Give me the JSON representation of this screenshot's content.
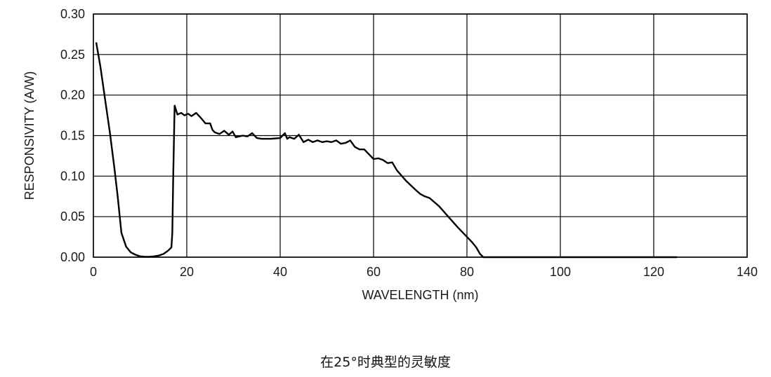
{
  "caption": "在25°时典型的灵敏度",
  "chart_data": {
    "type": "line",
    "title": "",
    "xlabel": "WAVELENGTH (nm)",
    "ylabel": "RESPONSIVITY (A/W)",
    "xlim": [
      0,
      140
    ],
    "ylim": [
      0,
      0.3
    ],
    "x_ticks": [
      0,
      20,
      40,
      60,
      80,
      100,
      120,
      140
    ],
    "x_tick_labels": [
      "0",
      "20",
      "40",
      "60",
      "80",
      "100",
      "120",
      "140"
    ],
    "y_ticks": [
      0,
      0.05,
      0.1,
      0.15,
      0.2,
      0.25,
      0.3
    ],
    "y_tick_labels": [
      "0.00",
      "0.05",
      "0.10",
      "0.15",
      "0.20",
      "0.25",
      "0.30"
    ],
    "grid": true,
    "legend": "none",
    "line_color": "#000000",
    "series": [
      {
        "x": [
          0.6,
          1.5,
          2.5,
          3.5,
          4.5,
          5.2,
          6,
          7,
          8,
          9,
          10,
          11,
          12,
          13,
          14,
          15,
          16,
          16.7,
          16.9,
          17.1,
          17.4,
          18,
          18.8,
          19.5,
          20.3,
          21,
          22,
          23,
          24,
          25,
          25.5,
          26,
          27,
          28,
          29,
          29.8,
          30.5,
          32,
          33,
          34,
          35,
          36,
          38,
          40,
          41,
          41.5,
          42,
          43,
          44,
          45,
          46,
          47,
          48,
          49,
          50,
          51,
          52,
          53,
          54,
          55,
          56,
          57,
          58,
          59,
          60,
          61,
          62,
          63,
          64,
          65,
          67,
          69,
          70,
          71,
          72,
          74,
          76,
          78,
          80,
          81,
          82,
          82.8,
          83.5,
          84,
          90,
          100,
          110,
          120,
          125
        ],
        "y": [
          0.265,
          0.235,
          0.195,
          0.155,
          0.11,
          0.075,
          0.03,
          0.013,
          0.006,
          0.003,
          0.001,
          0.0005,
          0.0005,
          0.001,
          0.002,
          0.004,
          0.008,
          0.012,
          0.03,
          0.1,
          0.187,
          0.176,
          0.178,
          0.175,
          0.177,
          0.174,
          0.178,
          0.172,
          0.165,
          0.165,
          0.157,
          0.154,
          0.152,
          0.156,
          0.151,
          0.155,
          0.148,
          0.15,
          0.149,
          0.153,
          0.147,
          0.146,
          0.146,
          0.147,
          0.153,
          0.146,
          0.148,
          0.146,
          0.151,
          0.142,
          0.145,
          0.142,
          0.144,
          0.142,
          0.143,
          0.142,
          0.144,
          0.14,
          0.141,
          0.144,
          0.136,
          0.133,
          0.133,
          0.127,
          0.121,
          0.122,
          0.12,
          0.116,
          0.117,
          0.107,
          0.094,
          0.083,
          0.078,
          0.075,
          0.073,
          0.063,
          0.05,
          0.037,
          0.025,
          0.019,
          0.012,
          0.004,
          0.0,
          0.0,
          0.0,
          0.0,
          0.0,
          0.0,
          0.0
        ]
      }
    ]
  }
}
